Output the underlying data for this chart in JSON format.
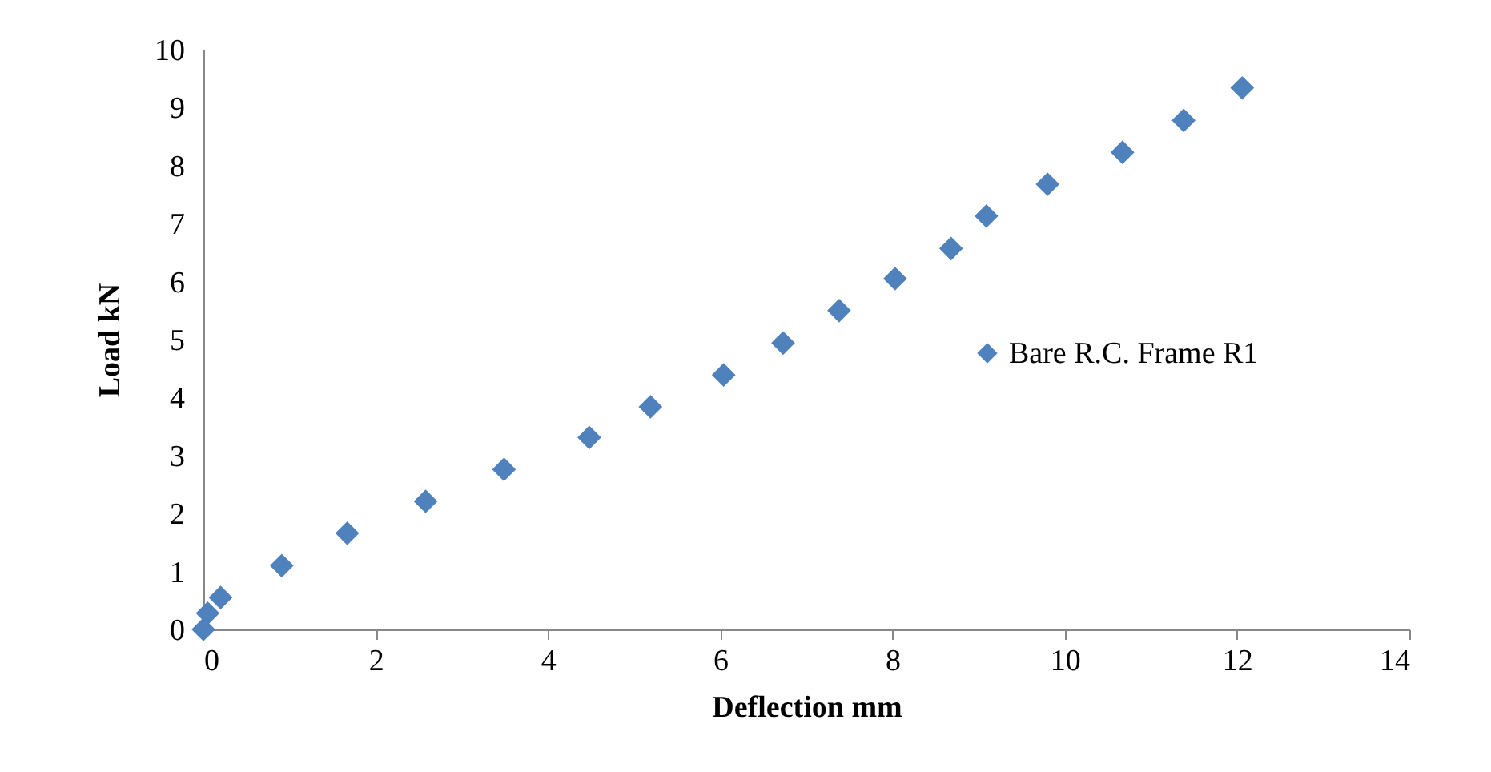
{
  "chart_data": {
    "type": "scatter",
    "xlabel": "Deflection  mm",
    "ylabel": "Load kN",
    "marker": "diamond",
    "grid": false,
    "legend": "right",
    "xlim": [
      0,
      14
    ],
    "xticks": [
      0,
      2,
      4,
      6,
      8,
      10,
      12,
      14
    ],
    "ylim": [
      0,
      10
    ],
    "yticks": [
      0,
      1,
      2,
      3,
      4,
      5,
      6,
      7,
      8,
      9,
      10
    ],
    "x": [
      0,
      0.05,
      0.2,
      0.91,
      1.67,
      2.58,
      3.49,
      4.48,
      5.19,
      6.04,
      6.73,
      7.38,
      8.03,
      8.68,
      9.09,
      9.8,
      10.67,
      11.38,
      12.06
    ],
    "series": [
      {
        "name": "Bare R.C. Frame R1",
        "color": "#4f81bd",
        "values": [
          0,
          0.28,
          0.55,
          1.1,
          1.66,
          2.21,
          2.76,
          3.31,
          3.84,
          4.39,
          4.94,
          5.5,
          6.05,
          6.57,
          7.13,
          7.68,
          8.23,
          8.78,
          9.34
        ]
      }
    ]
  }
}
